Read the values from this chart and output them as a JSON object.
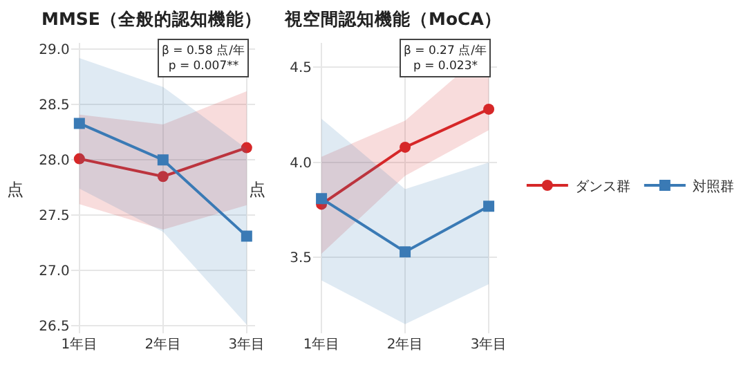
{
  "chart_data": [
    {
      "type": "line",
      "title": "MMSE（全般的認知機能）",
      "ylabel": "点",
      "categories": [
        "1年目",
        "2年目",
        "3年目"
      ],
      "ylim": [
        26.43,
        29.06
      ],
      "yticks": [
        {
          "value": 26.5,
          "label": "26.5"
        },
        {
          "value": 27,
          "label": "27.0"
        },
        {
          "value": 27.5,
          "label": "27.5"
        },
        {
          "value": 28,
          "label": "28.0"
        },
        {
          "value": 28.5,
          "label": "28.5"
        },
        {
          "value": 29,
          "label": "29.0"
        }
      ],
      "grid": true,
      "legend": "right",
      "annotations": [
        "β = 0.58 点/年\np = 0.007**"
      ],
      "series": [
        {
          "name": "ダンス群",
          "color": "#d62728",
          "marker": "circle",
          "values": [
            28.01,
            27.85,
            28.11
          ],
          "lower": [
            27.6,
            27.37,
            27.59
          ],
          "upper": [
            28.41,
            28.32,
            28.62
          ]
        },
        {
          "name": "対照群",
          "color": "#3a7ab5",
          "marker": "square",
          "values": [
            28.33,
            28.0,
            27.31
          ],
          "lower": [
            27.74,
            27.35,
            26.51
          ],
          "upper": [
            28.92,
            28.66,
            28.1
          ]
        }
      ]
    },
    {
      "type": "line",
      "title": "視空間認知機能（MoCA）",
      "ylabel": "点",
      "categories": [
        "1年目",
        "2年目",
        "3年目"
      ],
      "ylim": [
        3.1,
        4.63
      ],
      "yticks": [
        {
          "value": 3.5,
          "label": "3.5"
        },
        {
          "value": 4,
          "label": "4.0"
        },
        {
          "value": 4.5,
          "label": "4.5"
        }
      ],
      "grid": true,
      "annotations": [
        "β = 0.27 点/年\np = 0.023*"
      ],
      "series": [
        {
          "color": "#d62728",
          "marker": "circle",
          "values": [
            3.78,
            4.08,
            4.28
          ],
          "lower": [
            3.52,
            3.93,
            4.17
          ],
          "upper": [
            4.03,
            4.22,
            4.6
          ]
        },
        {
          "color": "#3a7ab5",
          "marker": "square",
          "values": [
            3.81,
            3.53,
            3.77
          ],
          "lower": [
            3.38,
            3.15,
            3.36
          ],
          "upper": [
            4.23,
            3.86,
            4.0
          ]
        }
      ]
    }
  ]
}
